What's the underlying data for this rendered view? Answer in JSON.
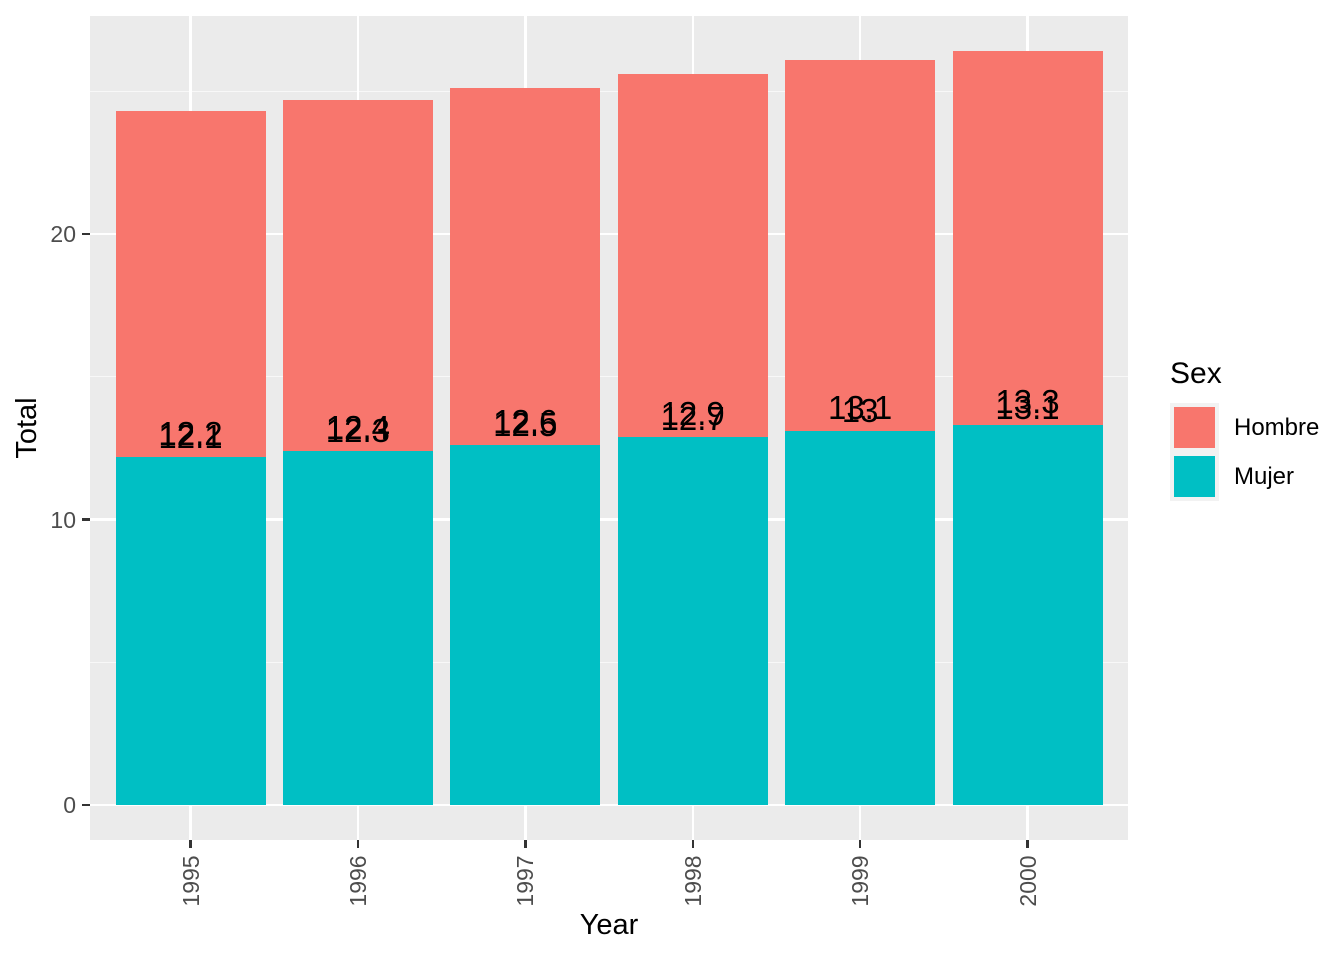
{
  "chart_data": {
    "type": "bar",
    "variant": "stacked",
    "title": "",
    "xlabel": "Year",
    "ylabel": "Total",
    "categories": [
      "1995",
      "1996",
      "1997",
      "1998",
      "1999",
      "2000"
    ],
    "series": [
      {
        "name": "Hombre",
        "color": "#F8766D",
        "values": [
          12.1,
          12.3,
          12.5,
          12.7,
          13.0,
          13.1
        ],
        "printed_labels": [
          "12.1",
          "12.3",
          "12.5",
          "12.7",
          "13",
          "13.1"
        ]
      },
      {
        "name": "Mujer",
        "color": "#00BFC4",
        "values": [
          12.2,
          12.4,
          12.6,
          12.9,
          13.1,
          13.3
        ],
        "printed_labels": [
          "12.2",
          "12.4",
          "12.6",
          "12.9",
          "13.1",
          "13.3"
        ]
      }
    ],
    "stack_order_bottom_to_top": [
      "Mujer",
      "Hombre"
    ],
    "stack_totals": [
      24.3,
      24.7,
      25.1,
      25.6,
      26.1,
      26.4
    ],
    "y_ticks": [
      0,
      10,
      20
    ],
    "y_tick_labels": [
      "0",
      "10",
      "20"
    ],
    "y_minor_ticks": [
      5,
      15,
      25
    ],
    "ylim": [
      -1.2,
      27.7
    ],
    "grid": true,
    "legend_position": "right",
    "label_notes": "Both series value labels are drawn overlapping just above the Mujer/Hombre boundary of each bar",
    "panel_bg": "#EBEBEB",
    "grid_color": "#FFFFFF",
    "tick_label_color": "#4D4D4D",
    "tick_mark_color": "#333333"
  },
  "axis": {
    "x_title": "Year",
    "y_title": "Total"
  },
  "legend": {
    "title": "Sex",
    "items": [
      {
        "label": "Hombre",
        "color": "#F8766D"
      },
      {
        "label": "Mujer",
        "color": "#00BFC4"
      }
    ]
  }
}
